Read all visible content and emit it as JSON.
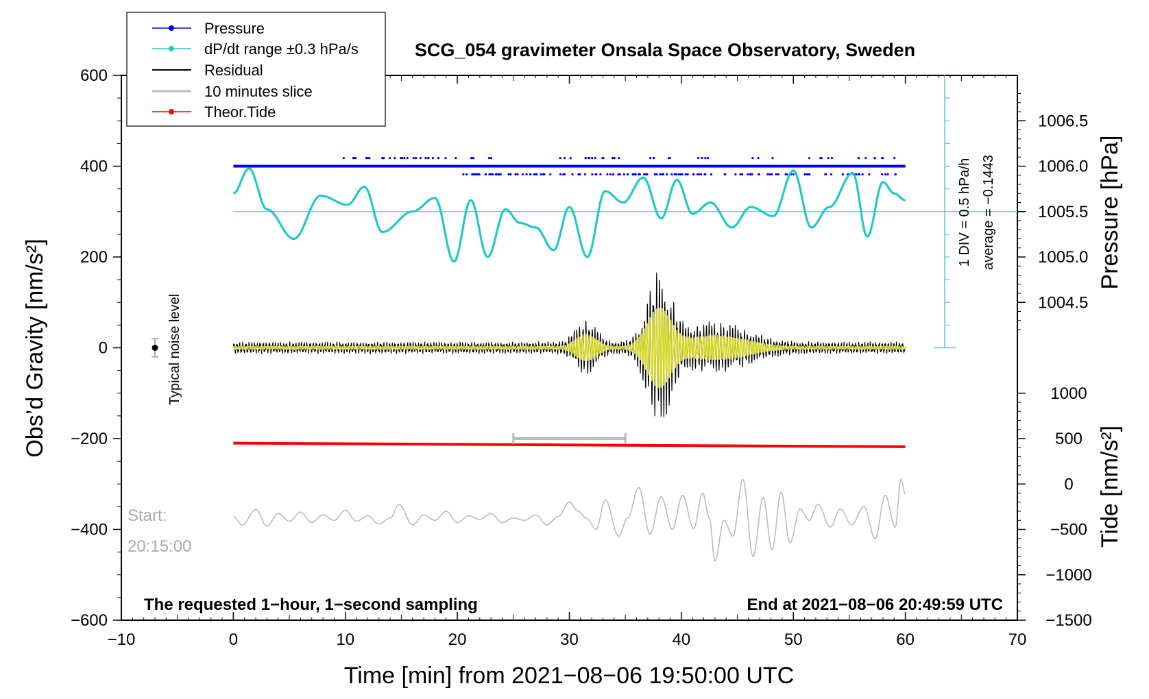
{
  "chart_data": {
    "type": "line",
    "title": "SCG_054 gravimeter Onsala Space Observatory, Sweden",
    "xlabel": "Time [min] from 2021−08−06 19:50:00 UTC",
    "ylabel_left": "Obs’d Gravity [nm/s²]",
    "ylabel_right_top": "Pressure [hPa]",
    "ylabel_right_bottom": "Tide [nm/s²]",
    "xlim": [
      -10,
      70
    ],
    "ylim": [
      -600,
      600
    ],
    "x_ticks": [
      "−10",
      "0",
      "10",
      "20",
      "30",
      "40",
      "50",
      "60",
      "70"
    ],
    "x_tick_values": [
      -10,
      0,
      10,
      20,
      30,
      40,
      50,
      60,
      70
    ],
    "y_ticks": [
      "600",
      "400",
      "200",
      "0",
      "−200",
      "−400",
      "−600"
    ],
    "y_tick_values": [
      600,
      400,
      200,
      0,
      -200,
      -400,
      -600
    ],
    "pressure_ticks": [
      "1006.5",
      "1006.0",
      "1005.5",
      "1005.0",
      "1004.5"
    ],
    "pressure_tick_values": [
      1006.5,
      1006.0,
      1005.5,
      1005.0,
      1004.5
    ],
    "pressure_map": {
      "value_a": 1006.0,
      "gravity_a": 400,
      "value_b": 1005.0,
      "gravity_b": 200
    },
    "tide_ticks": [
      "1000",
      "500",
      "0",
      "−500",
      "−1000",
      "−1500"
    ],
    "tide_tick_values": [
      1000,
      500,
      0,
      -500,
      -1000,
      -1500
    ],
    "tide_map": {
      "value_a": 0,
      "gravity_a": -300,
      "value_b": -1500,
      "gravity_b": -600
    },
    "legend": [
      {
        "label": "Pressure",
        "color": "#0000ee",
        "marker": true
      },
      {
        "label": "dP/dt range ±0.3 hPa/s",
        "color": "#00cccc",
        "marker": true
      },
      {
        "label": "Residual",
        "color": "#000000",
        "marker": false
      },
      {
        "label": "10 minutes slice",
        "color": "#bbbbbb",
        "marker": false
      },
      {
        "label": "Theor.Tide",
        "color": "#ff0000",
        "marker": true
      }
    ],
    "colors": {
      "pressure": "#0000ee",
      "dpdt": "#22c8c8",
      "residual": "#000000",
      "filtered": "#d6d61e",
      "slice": "#bbbbbb",
      "tide": "#ff0000",
      "ruler": "#5cc8c8"
    },
    "series": [
      {
        "name": "Theor.Tide",
        "x": [
          0,
          60
        ],
        "y": [
          -210,
          -218
        ]
      },
      {
        "name": "Pressure",
        "x": [
          0,
          60
        ],
        "y": [
          400,
          400
        ]
      },
      {
        "name": "dP/dt",
        "x": [
          0,
          1.4,
          3,
          5.4,
          7.8,
          10.2,
          11.7,
          13.3,
          16,
          18,
          19.7,
          21.2,
          22.7,
          24.3,
          25.6,
          27,
          28.6,
          30,
          31.6,
          33.2,
          34.8,
          36.6,
          38.2,
          39.6,
          41,
          42.6,
          44.5,
          46.2,
          48.2,
          50,
          51.6,
          53.2,
          55.3,
          56.6,
          58,
          59,
          60
        ],
        "y": [
          340,
          395,
          305,
          240,
          335,
          315,
          355,
          255,
          300,
          330,
          190,
          325,
          200,
          305,
          275,
          265,
          215,
          310,
          200,
          345,
          320,
          375,
          285,
          370,
          295,
          320,
          265,
          310,
          290,
          390,
          265,
          310,
          385,
          245,
          365,
          340,
          325
        ]
      },
      {
        "name": "10 minutes slice",
        "x": [
          0,
          0.8,
          2,
          3,
          4,
          5,
          6,
          7,
          8,
          9,
          10,
          11,
          12,
          13,
          14,
          14.8,
          16,
          17,
          18,
          19,
          20,
          21,
          22,
          23,
          24,
          25,
          26,
          27,
          28,
          29,
          30,
          30.8,
          31.5,
          32.4,
          33.2,
          34.4,
          35.2,
          36.2,
          37.2,
          38.2,
          39.2,
          40.1,
          41.1,
          41.9,
          42.5,
          43,
          43.8,
          44.6,
          45.5,
          46.4,
          47.3,
          48.1,
          48.9,
          49.7,
          50.6,
          51.4,
          52.2,
          53.3,
          54.2,
          55.2,
          56.3,
          57.3,
          58.2,
          59.1,
          59.6,
          60
        ],
        "y": [
          -372,
          -390,
          -356,
          -393,
          -365,
          -382,
          -362,
          -385,
          -368,
          -380,
          -358,
          -382,
          -370,
          -388,
          -375,
          -345,
          -390,
          -368,
          -380,
          -360,
          -385,
          -370,
          -378,
          -365,
          -385,
          -375,
          -380,
          -368,
          -390,
          -372,
          -340,
          -360,
          -375,
          -400,
          -335,
          -415,
          -375,
          -308,
          -410,
          -328,
          -400,
          -325,
          -398,
          -320,
          -375,
          -470,
          -380,
          -415,
          -290,
          -460,
          -330,
          -445,
          -318,
          -430,
          -355,
          -380,
          -345,
          -395,
          -355,
          -390,
          -350,
          -420,
          -325,
          -395,
          -290,
          -322
        ]
      }
    ],
    "annotations": {
      "pressure_dots_upper": "scattered pressure samples near 1006.1 hPa",
      "pressure_dots_lower": "scattered pressure samples near 1005.9 hPa",
      "pressure_ruler": {
        "div_label": "1 DIV = 0.5 hPa/h",
        "average_label": "average = −0.1443"
      },
      "noise": {
        "label": "Typical noise level",
        "x": -7,
        "y": 0,
        "error": 20
      },
      "start_label": {
        "line1": "Start:",
        "line2": "20:15:00"
      },
      "slice_bar": {
        "x_start": 25,
        "x_end": 35,
        "y": -200
      },
      "footer_left": "The requested 1−hour, 1−second sampling",
      "footer_right": "End at 2021−08−06 20:49:59 UTC"
    }
  }
}
